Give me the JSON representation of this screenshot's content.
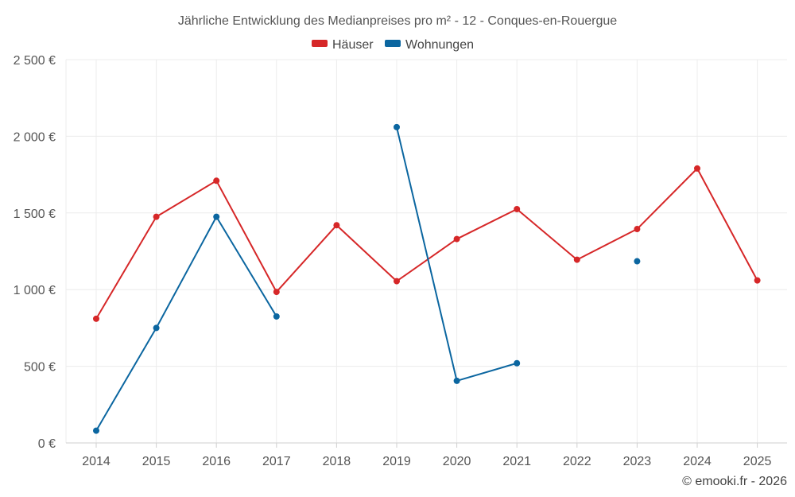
{
  "chart_data": {
    "type": "line",
    "title": "Jährliche Entwicklung des Medianpreises pro m² - 12 - Conques-en-Rouergue",
    "categories": [
      "2014",
      "2015",
      "2016",
      "2017",
      "2018",
      "2019",
      "2020",
      "2021",
      "2022",
      "2023",
      "2024",
      "2025"
    ],
    "ylim": [
      0,
      2500
    ],
    "yticks": [
      0,
      500,
      1000,
      1500,
      2000,
      2500
    ],
    "ytick_labels": [
      "0 €",
      "500 €",
      "1 000 €",
      "1 500 €",
      "2 000 €",
      "2 500 €"
    ],
    "legend_position": "top-center",
    "grid": true,
    "series": [
      {
        "name": "Häuser",
        "color": "#d62728",
        "values": [
          810,
          1475,
          1710,
          985,
          1420,
          1055,
          1330,
          1525,
          1195,
          1395,
          1790,
          1060
        ]
      },
      {
        "name": "Wohnungen",
        "color": "#0b66a0",
        "values": [
          80,
          750,
          1475,
          825,
          null,
          2060,
          405,
          520,
          null,
          1185,
          null,
          null
        ]
      }
    ]
  },
  "credit": "© emooki.fr - 2026"
}
